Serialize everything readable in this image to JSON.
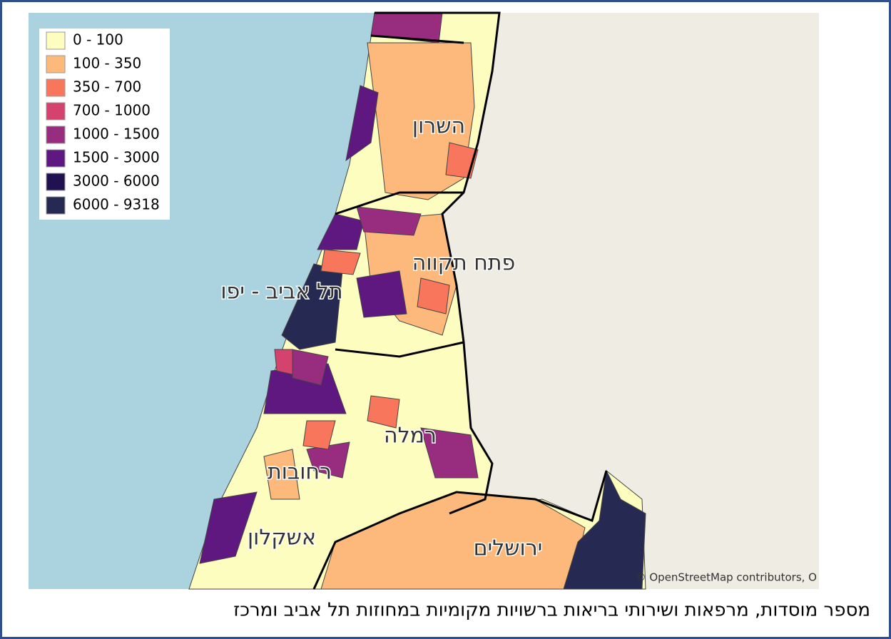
{
  "legend": {
    "items": [
      {
        "label": "0 - 100",
        "color": "#fcfdbf"
      },
      {
        "label": "100 - 350",
        "color": "#fdb97c"
      },
      {
        "label": "350 - 700",
        "color": "#f8765c"
      },
      {
        "label": "700 - 1000",
        "color": "#d3436e"
      },
      {
        "label": "1000 - 1500",
        "color": "#982d80"
      },
      {
        "label": "1500 - 3000",
        "color": "#5f187f"
      },
      {
        "label": "3000 - 6000",
        "color": "#221150"
      },
      {
        "label": "6000 - 9318",
        "color": "#262a52"
      }
    ]
  },
  "map_labels": [
    "השרון",
    "פתח תקווה",
    "תל אביב - יפו",
    "רמלה",
    "רחובות",
    "אשקלון",
    "ירושלים"
  ],
  "attribution": "© OpenStreetMap contributors, O",
  "caption": "מספר מוסדות, מרפאות ושירותי בריאות ברשויות מקומיות במחוזות תל אביב ומרכז"
}
